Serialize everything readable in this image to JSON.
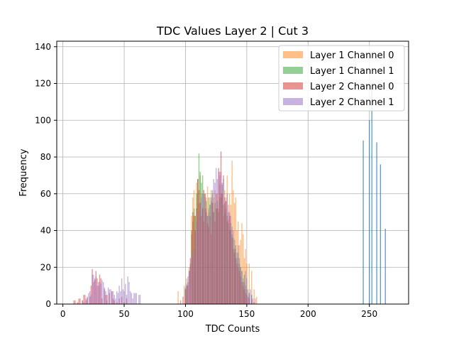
{
  "chart_data": {
    "type": "bar",
    "title": "TDC Values Layer 2 | Cut 3",
    "xlabel": "TDC Counts",
    "ylabel": "Frequency",
    "xlim": [
      -5,
      282
    ],
    "ylim": [
      0,
      143
    ],
    "xticks": [
      0,
      50,
      100,
      150,
      200,
      250
    ],
    "yticks": [
      0,
      20,
      40,
      60,
      80,
      100,
      120,
      140
    ],
    "grid": true,
    "legend_position": "top-right",
    "bar_width": 0.8,
    "series": [
      {
        "name": "Layer 1 Channel 0",
        "color": "#ff7f0e",
        "opacity": 0.5,
        "points": [
          [
            94,
            7
          ],
          [
            99,
            10
          ],
          [
            101,
            14
          ],
          [
            103,
            20
          ],
          [
            105,
            48
          ],
          [
            106,
            58
          ],
          [
            107,
            62
          ],
          [
            108,
            48
          ],
          [
            109,
            66
          ],
          [
            110,
            60
          ],
          [
            111,
            55
          ],
          [
            112,
            70
          ],
          [
            113,
            60
          ],
          [
            114,
            52
          ],
          [
            115,
            62
          ],
          [
            116,
            60
          ],
          [
            117,
            58
          ],
          [
            118,
            64
          ],
          [
            119,
            52
          ],
          [
            120,
            58
          ],
          [
            121,
            62
          ],
          [
            122,
            55
          ],
          [
            123,
            58
          ],
          [
            124,
            62
          ],
          [
            125,
            52
          ],
          [
            126,
            60
          ],
          [
            127,
            52
          ],
          [
            128,
            65
          ],
          [
            129,
            58
          ],
          [
            130,
            60
          ],
          [
            131,
            48
          ],
          [
            132,
            62
          ],
          [
            133,
            58
          ],
          [
            134,
            70
          ],
          [
            135,
            46
          ],
          [
            136,
            60
          ],
          [
            137,
            54
          ],
          [
            138,
            78
          ],
          [
            139,
            62
          ],
          [
            140,
            55
          ],
          [
            141,
            58
          ],
          [
            142,
            40
          ],
          [
            143,
            45
          ],
          [
            144,
            32
          ],
          [
            145,
            35
          ],
          [
            146,
            44
          ],
          [
            147,
            38
          ],
          [
            148,
            25
          ],
          [
            149,
            30
          ],
          [
            150,
            22
          ],
          [
            152,
            22
          ],
          [
            154,
            18
          ],
          [
            156,
            8
          ],
          [
            158,
            4
          ]
        ]
      },
      {
        "name": "Layer 1 Channel 1",
        "color": "#2ca02c",
        "opacity": 0.5,
        "points": [
          [
            100,
            8
          ],
          [
            101,
            10
          ],
          [
            102,
            12
          ],
          [
            104,
            22
          ],
          [
            105,
            38
          ],
          [
            106,
            45
          ],
          [
            107,
            52
          ],
          [
            108,
            48
          ],
          [
            109,
            60
          ],
          [
            110,
            68
          ],
          [
            111,
            82
          ],
          [
            112,
            72
          ],
          [
            113,
            66
          ],
          [
            114,
            70
          ],
          [
            115,
            60
          ],
          [
            116,
            52
          ],
          [
            117,
            56
          ],
          [
            118,
            48
          ],
          [
            119,
            58
          ],
          [
            120,
            54
          ],
          [
            121,
            56
          ],
          [
            122,
            60
          ],
          [
            123,
            50
          ],
          [
            124,
            55
          ],
          [
            125,
            52
          ],
          [
            126,
            56
          ],
          [
            127,
            50
          ],
          [
            128,
            58
          ],
          [
            129,
            60
          ],
          [
            130,
            65
          ],
          [
            131,
            54
          ],
          [
            132,
            50
          ],
          [
            133,
            52
          ],
          [
            134,
            48
          ],
          [
            135,
            44
          ],
          [
            136,
            40
          ],
          [
            137,
            44
          ],
          [
            138,
            38
          ],
          [
            139,
            36
          ],
          [
            140,
            30
          ],
          [
            141,
            32
          ],
          [
            142,
            25
          ],
          [
            143,
            28
          ],
          [
            144,
            22
          ],
          [
            145,
            20
          ],
          [
            146,
            18
          ],
          [
            147,
            12
          ],
          [
            148,
            16
          ],
          [
            149,
            10
          ],
          [
            150,
            8
          ],
          [
            152,
            6
          ],
          [
            154,
            5
          ]
        ]
      },
      {
        "name": "Layer 2 Channel 0",
        "color": "#d62728",
        "opacity": 0.5,
        "points": [
          [
            9,
            2
          ],
          [
            10,
            2
          ],
          [
            12,
            1
          ],
          [
            13,
            3
          ],
          [
            14,
            3
          ],
          [
            16,
            2
          ],
          [
            17,
            5
          ],
          [
            18,
            5
          ],
          [
            19,
            2
          ],
          [
            20,
            4
          ],
          [
            22,
            4
          ],
          [
            23,
            10
          ],
          [
            24,
            19
          ],
          [
            25,
            12
          ],
          [
            26,
            13
          ],
          [
            27,
            18
          ],
          [
            28,
            14
          ],
          [
            29,
            10
          ],
          [
            30,
            16
          ],
          [
            31,
            14
          ],
          [
            32,
            3
          ],
          [
            34,
            8
          ],
          [
            35,
            5
          ],
          [
            36,
            5
          ],
          [
            38,
            6
          ],
          [
            40,
            7
          ],
          [
            41,
            3
          ],
          [
            42,
            2
          ],
          [
            44,
            1
          ],
          [
            46,
            3
          ],
          [
            48,
            4
          ],
          [
            50,
            1
          ],
          [
            52,
            3
          ],
          [
            96,
            2
          ],
          [
            98,
            4
          ],
          [
            100,
            8
          ],
          [
            101,
            10
          ],
          [
            102,
            10
          ],
          [
            103,
            18
          ],
          [
            104,
            25
          ],
          [
            105,
            40
          ],
          [
            106,
            50
          ],
          [
            107,
            48
          ],
          [
            108,
            40
          ],
          [
            109,
            52
          ],
          [
            110,
            68
          ],
          [
            111,
            62
          ],
          [
            112,
            55
          ],
          [
            113,
            48
          ],
          [
            114,
            52
          ],
          [
            115,
            45
          ],
          [
            116,
            60
          ],
          [
            117,
            50
          ],
          [
            118,
            44
          ],
          [
            119,
            42
          ],
          [
            120,
            48
          ],
          [
            121,
            38
          ],
          [
            122,
            55
          ],
          [
            123,
            50
          ],
          [
            124,
            45
          ],
          [
            125,
            60
          ],
          [
            126,
            52
          ],
          [
            127,
            74
          ],
          [
            128,
            72
          ],
          [
            129,
            83
          ],
          [
            130,
            60
          ],
          [
            131,
            70
          ],
          [
            132,
            55
          ],
          [
            133,
            56
          ],
          [
            134,
            45
          ],
          [
            135,
            50
          ],
          [
            136,
            48
          ],
          [
            137,
            40
          ],
          [
            138,
            36
          ],
          [
            139,
            30
          ],
          [
            140,
            28
          ],
          [
            141,
            25
          ],
          [
            142,
            22
          ],
          [
            143,
            20
          ],
          [
            144,
            18
          ],
          [
            145,
            15
          ],
          [
            146,
            12
          ],
          [
            147,
            10
          ],
          [
            148,
            8
          ],
          [
            149,
            6
          ],
          [
            150,
            5
          ],
          [
            151,
            4
          ],
          [
            152,
            3
          ],
          [
            154,
            2
          ],
          [
            156,
            1
          ]
        ]
      },
      {
        "name": "Layer 2 Channel 1",
        "color": "#9467bd",
        "opacity": 0.5,
        "points": [
          [
            16,
            2
          ],
          [
            17,
            1
          ],
          [
            19,
            3
          ],
          [
            20,
            3
          ],
          [
            21,
            6
          ],
          [
            22,
            7
          ],
          [
            23,
            5
          ],
          [
            24,
            16
          ],
          [
            25,
            16
          ],
          [
            26,
            14
          ],
          [
            27,
            15
          ],
          [
            28,
            10
          ],
          [
            29,
            12
          ],
          [
            30,
            12
          ],
          [
            31,
            11
          ],
          [
            32,
            13
          ],
          [
            33,
            12
          ],
          [
            34,
            9
          ],
          [
            35,
            7
          ],
          [
            36,
            2
          ],
          [
            37,
            9
          ],
          [
            38,
            8
          ],
          [
            39,
            8
          ],
          [
            40,
            7
          ],
          [
            41,
            7
          ],
          [
            42,
            5
          ],
          [
            43,
            3
          ],
          [
            44,
            7
          ],
          [
            45,
            6
          ],
          [
            46,
            10
          ],
          [
            47,
            7
          ],
          [
            48,
            14
          ],
          [
            49,
            8
          ],
          [
            50,
            7
          ],
          [
            51,
            11
          ],
          [
            52,
            5
          ],
          [
            53,
            15
          ],
          [
            54,
            12
          ],
          [
            55,
            7
          ],
          [
            56,
            6
          ],
          [
            57,
            3
          ],
          [
            58,
            6
          ],
          [
            59,
            6
          ],
          [
            60,
            6
          ],
          [
            62,
            5
          ],
          [
            63,
            5
          ],
          [
            100,
            9
          ],
          [
            101,
            11
          ],
          [
            102,
            15
          ],
          [
            103,
            18
          ],
          [
            104,
            20
          ],
          [
            105,
            28
          ],
          [
            106,
            25
          ],
          [
            107,
            30
          ],
          [
            108,
            40
          ],
          [
            109,
            45
          ],
          [
            110,
            48
          ],
          [
            111,
            50
          ],
          [
            112,
            55
          ],
          [
            113,
            58
          ],
          [
            114,
            60
          ],
          [
            115,
            62
          ],
          [
            116,
            58
          ],
          [
            117,
            52
          ],
          [
            118,
            48
          ],
          [
            119,
            50
          ],
          [
            120,
            54
          ],
          [
            121,
            58
          ],
          [
            122,
            62
          ],
          [
            123,
            68
          ],
          [
            124,
            66
          ],
          [
            125,
            74
          ],
          [
            126,
            68
          ],
          [
            127,
            72
          ],
          [
            128,
            70
          ],
          [
            129,
            72
          ],
          [
            130,
            66
          ],
          [
            131,
            68
          ],
          [
            132,
            58
          ],
          [
            133,
            56
          ],
          [
            134,
            60
          ],
          [
            135,
            54
          ],
          [
            136,
            50
          ],
          [
            137,
            48
          ],
          [
            138,
            42
          ],
          [
            139,
            40
          ],
          [
            140,
            35
          ],
          [
            141,
            30
          ],
          [
            142,
            28
          ],
          [
            143,
            32
          ],
          [
            144,
            25
          ],
          [
            145,
            20
          ],
          [
            146,
            18
          ],
          [
            147,
            14
          ],
          [
            148,
            12
          ],
          [
            149,
            18
          ],
          [
            150,
            14
          ],
          [
            151,
            8
          ],
          [
            152,
            6
          ],
          [
            153,
            8
          ],
          [
            154,
            5
          ],
          [
            155,
            3
          ],
          [
            157,
            3
          ]
        ]
      },
      {
        "name": "",
        "color": "#1f77b4",
        "opacity": 1.0,
        "bar_width": 0.55,
        "points": [
          [
            245,
            89
          ],
          [
            250,
            100
          ],
          [
            252,
            119
          ],
          [
            256,
            88
          ],
          [
            259,
            76
          ],
          [
            263,
            41
          ]
        ]
      }
    ]
  }
}
